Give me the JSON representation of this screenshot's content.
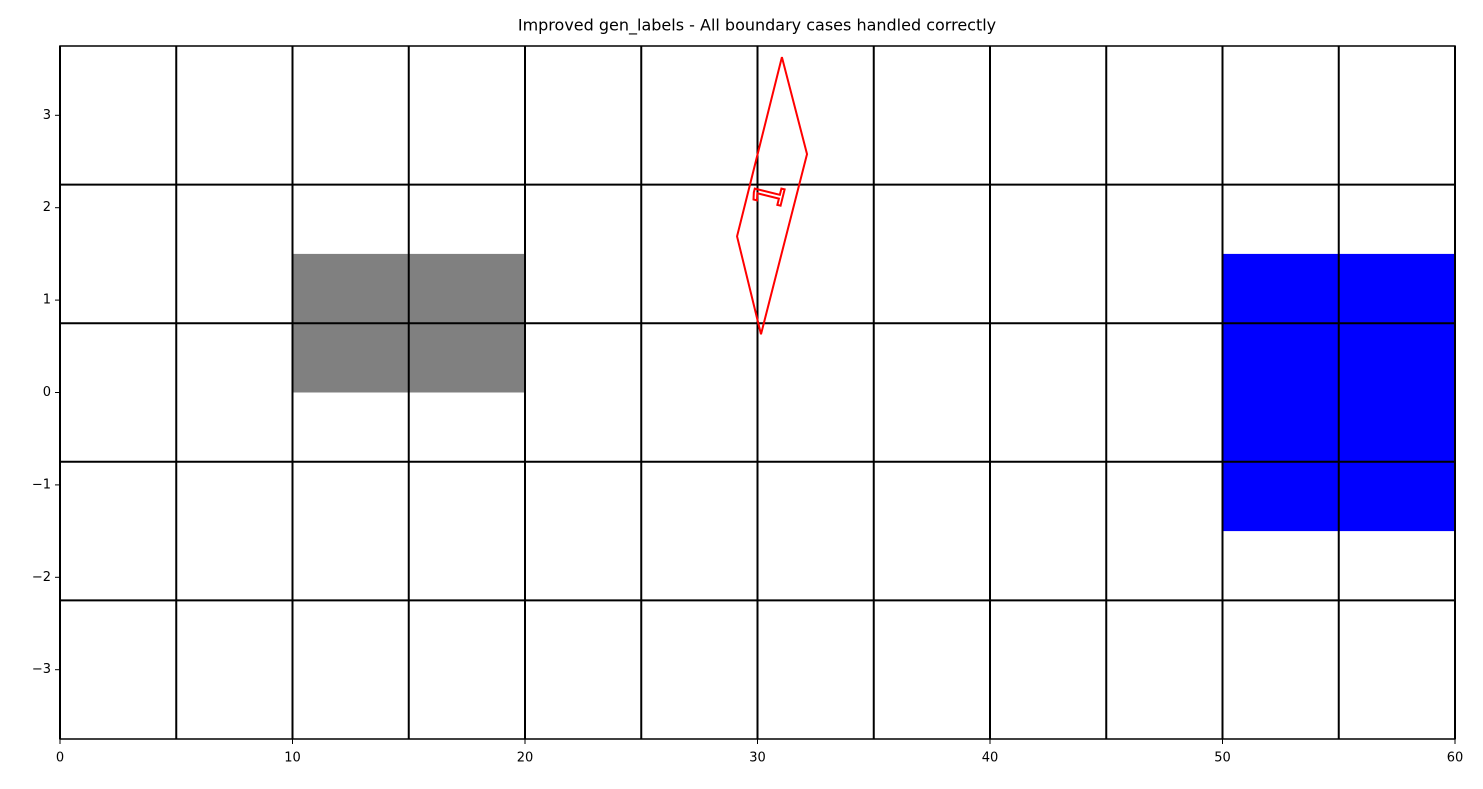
{
  "chart_data": {
    "type": "shapes",
    "title": "Improved gen_labels - All boundary cases handled correctly",
    "xlim": [
      0,
      60
    ],
    "ylim": [
      -3.75,
      3.75
    ],
    "xticks": [
      0,
      10,
      20,
      30,
      40,
      50,
      60
    ],
    "yticks": [
      {
        "value": -3,
        "label": "−3"
      },
      {
        "value": -2,
        "label": "−2"
      },
      {
        "value": -1,
        "label": "−1"
      },
      0,
      1,
      2,
      3
    ],
    "vgrid": [
      0,
      5,
      10,
      15,
      20,
      25,
      30,
      35,
      40,
      45,
      50,
      55,
      60
    ],
    "hgrid": [
      -2.25,
      -0.75,
      0.75,
      2.25
    ],
    "rects": [
      {
        "x": [
          10,
          20
        ],
        "y": [
          0,
          1.5
        ],
        "color": "#808080"
      },
      {
        "x": [
          50,
          60
        ],
        "y": [
          -1.5,
          1.5
        ],
        "color": "#0000ff"
      }
    ],
    "polygon": {
      "x": [
        31.05,
        32.13,
        30.15,
        29.12
      ],
      "y": [
        3.63,
        2.58,
        0.63,
        1.69
      ],
      "color": "#ff0000",
      "label": "1"
    }
  }
}
